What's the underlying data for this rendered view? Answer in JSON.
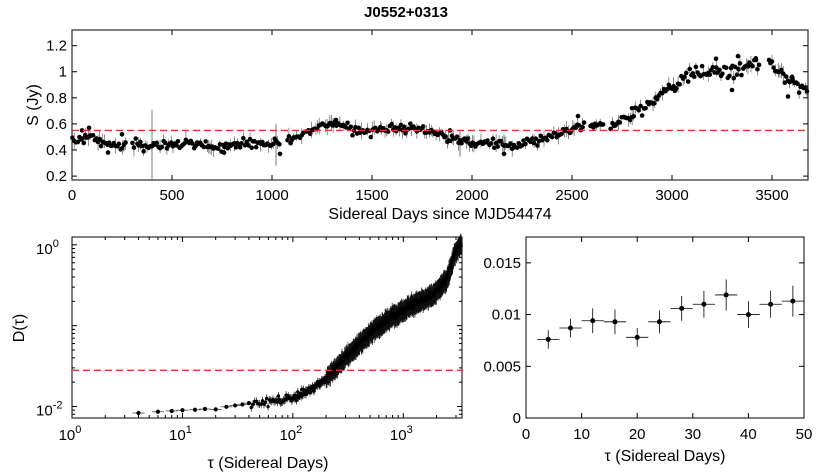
{
  "figure": {
    "title": "J0552+0313"
  },
  "chart_data": [
    {
      "id": "lightcurve",
      "type": "scatter",
      "title": "J0552+0313",
      "xlabel": "Sidereal Days since MJD54474",
      "ylabel": "S (Jy)",
      "xlim": [
        0,
        3680
      ],
      "ylim": [
        0.17,
        1.32
      ],
      "xticks": [
        0,
        500,
        1000,
        1500,
        2000,
        2500,
        3000,
        3500
      ],
      "xtick_labels": [
        "0",
        "500",
        "1000",
        "1500",
        "2000",
        "2500",
        "3000",
        "3500"
      ],
      "yticks": [
        0.2,
        0.4,
        0.6,
        0.8,
        1.0,
        1.2
      ],
      "ytick_labels": [
        "0.2",
        "0.4",
        "0.6",
        "0.8",
        "1",
        "1.2"
      ],
      "mean_line": 0.55,
      "anchors": [
        [
          0,
          0.47
        ],
        [
          100,
          0.5
        ],
        [
          200,
          0.43
        ],
        [
          300,
          0.44
        ],
        [
          400,
          0.44
        ],
        [
          500,
          0.44
        ],
        [
          600,
          0.44
        ],
        [
          700,
          0.43
        ],
        [
          800,
          0.44
        ],
        [
          900,
          0.45
        ],
        [
          1000,
          0.44
        ],
        [
          1100,
          0.48
        ],
        [
          1200,
          0.57
        ],
        [
          1300,
          0.6
        ],
        [
          1400,
          0.56
        ],
        [
          1500,
          0.55
        ],
        [
          1600,
          0.56
        ],
        [
          1700,
          0.57
        ],
        [
          1800,
          0.54
        ],
        [
          1900,
          0.48
        ],
        [
          2000,
          0.45
        ],
        [
          2100,
          0.46
        ],
        [
          2200,
          0.42
        ],
        [
          2300,
          0.46
        ],
        [
          2400,
          0.5
        ],
        [
          2500,
          0.56
        ],
        [
          2600,
          0.57
        ],
        [
          2700,
          0.6
        ],
        [
          2800,
          0.66
        ],
        [
          2900,
          0.77
        ],
        [
          3000,
          0.9
        ],
        [
          3100,
          0.98
        ],
        [
          3200,
          1.0
        ],
        [
          3300,
          0.99
        ],
        [
          3400,
          1.06
        ],
        [
          3500,
          1.05
        ],
        [
          3600,
          0.92
        ],
        [
          3680,
          0.88
        ]
      ],
      "outliers": [
        [
          50,
          0.55
        ],
        [
          85,
          0.57
        ],
        [
          180,
          0.38
        ],
        [
          250,
          0.52
        ],
        [
          760,
          0.38
        ],
        [
          1040,
          0.37
        ],
        [
          1320,
          0.63
        ],
        [
          1890,
          0.55
        ],
        [
          2160,
          0.37
        ],
        [
          2530,
          0.66
        ],
        [
          2560,
          0.61
        ],
        [
          2800,
          0.72
        ],
        [
          3220,
          1.1
        ],
        [
          3300,
          0.86
        ],
        [
          3330,
          1.12
        ],
        [
          3420,
          1.09
        ],
        [
          3580,
          0.81
        ],
        [
          3600,
          0.96
        ]
      ],
      "error_bars": [
        [
          400,
          0.44,
          0.27
        ],
        [
          1020,
          0.44,
          0.16
        ],
        [
          1940,
          0.45,
          0.1
        ],
        [
          2160,
          0.44,
          0.08
        ]
      ]
    },
    {
      "id": "structure-function",
      "type": "scatter",
      "xscale": "log",
      "yscale": "log",
      "xlabel": "τ (Sidereal Days)",
      "ylabel": "D(τ)",
      "xlim": [
        1,
        3400
      ],
      "ylim": [
        0.0072,
        1.25
      ],
      "xtick_bases": [
        "10",
        "10",
        "10",
        "10"
      ],
      "xtick_exponents": [
        "0",
        "1",
        "2",
        "3"
      ],
      "ytick_bases": [
        "10",
        "10"
      ],
      "ytick_exponents": [
        "-2",
        "0"
      ],
      "mean_line": 0.028,
      "anchors": [
        [
          5,
          0.0087
        ],
        [
          12,
          0.0093
        ],
        [
          20,
          0.0092
        ],
        [
          40,
          0.0105
        ],
        [
          80,
          0.012
        ],
        [
          120,
          0.014
        ],
        [
          200,
          0.022
        ],
        [
          300,
          0.04
        ],
        [
          500,
          0.08
        ],
        [
          800,
          0.13
        ],
        [
          1200,
          0.18
        ],
        [
          1600,
          0.21
        ],
        [
          2000,
          0.26
        ],
        [
          2500,
          0.38
        ],
        [
          2900,
          0.75
        ],
        [
          3300,
          1.0
        ]
      ],
      "early_points": [
        [
          4,
          0.0083
        ],
        [
          6,
          0.0086
        ],
        [
          8,
          0.0088
        ],
        [
          10,
          0.009
        ],
        [
          13,
          0.0091
        ],
        [
          16,
          0.0093
        ],
        [
          20,
          0.0092
        ],
        [
          25,
          0.0099
        ],
        [
          30,
          0.0103
        ],
        [
          35,
          0.0106
        ],
        [
          40,
          0.011
        ]
      ]
    },
    {
      "id": "structure-function-zoom",
      "type": "scatter",
      "xlabel": "τ (Sidereal Days)",
      "ylabel": "",
      "xlim": [
        0,
        50
      ],
      "ylim": [
        0,
        0.0175
      ],
      "xticks": [
        0,
        10,
        20,
        30,
        40,
        50
      ],
      "xtick_labels": [
        "0",
        "10",
        "20",
        "30",
        "40",
        "50"
      ],
      "yticks": [
        0,
        0.005,
        0.01,
        0.015
      ],
      "ytick_labels": [
        "0",
        "0.005",
        "0.01",
        "0.015"
      ],
      "points": [
        {
          "x": 4,
          "y": 0.0076,
          "yerr": 0.0009
        },
        {
          "x": 8,
          "y": 0.0087,
          "yerr": 0.0009
        },
        {
          "x": 12,
          "y": 0.0094,
          "yerr": 0.0012
        },
        {
          "x": 16,
          "y": 0.0093,
          "yerr": 0.0012
        },
        {
          "x": 20,
          "y": 0.0078,
          "yerr": 0.0009
        },
        {
          "x": 24,
          "y": 0.0093,
          "yerr": 0.0011
        },
        {
          "x": 28,
          "y": 0.0106,
          "yerr": 0.0012
        },
        {
          "x": 32,
          "y": 0.011,
          "yerr": 0.0013
        },
        {
          "x": 36,
          "y": 0.0119,
          "yerr": 0.0015
        },
        {
          "x": 40,
          "y": 0.01,
          "yerr": 0.0013
        },
        {
          "x": 44,
          "y": 0.011,
          "yerr": 0.0013
        },
        {
          "x": 48,
          "y": 0.0113,
          "yerr": 0.0015
        }
      ]
    }
  ]
}
